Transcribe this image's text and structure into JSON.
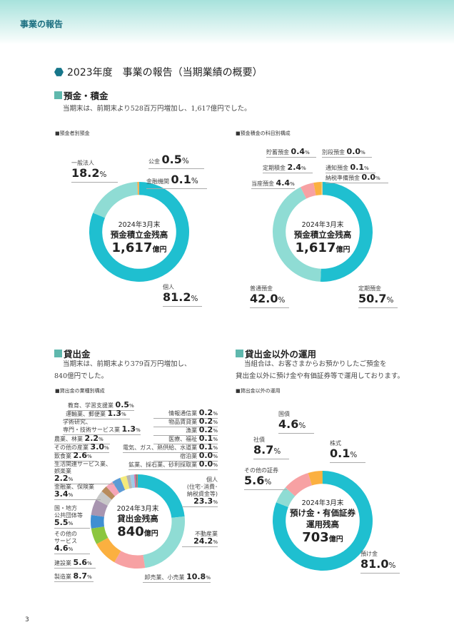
{
  "header": {
    "title": "事業の報告"
  },
  "main_title": "2023年度　事業の報告（当期業績の概要）",
  "deposits": {
    "heading": "預金・積金",
    "text": "当期末は、前期末より528百万円増加し、1,617億円でした。"
  },
  "loans": {
    "heading": "貸出金",
    "text1": "当期末は、前期末より379百万円増加し、",
    "text2": "840億円でした。"
  },
  "investments": {
    "heading": "貸出金以外の運用",
    "text1": "当組合は、お客さまからお預かりしたご預金を",
    "text2": "貸出金以外に預け金や有価証券等で運用しております。"
  },
  "page_number": "3",
  "chart_data": [
    {
      "type": "pie",
      "subtitle": "■預金者別預金",
      "center": {
        "line1": "2024年3月末",
        "line2": "預金積立金残高",
        "value": "1,617",
        "unit": "億円"
      },
      "categories": [
        "個人",
        "一般法人",
        "公金",
        "金融機関"
      ],
      "values": [
        81.2,
        18.2,
        0.5,
        0.1
      ],
      "labels": [
        "81.2",
        "18.2",
        "0.5",
        "0.1"
      ],
      "pct": "%",
      "colors": [
        "#1fbfd0",
        "#8fdcd4",
        "#fbb040",
        "#f7a1a3"
      ]
    },
    {
      "type": "pie",
      "subtitle": "■預金積金の科目別構成",
      "center": {
        "line1": "2024年3月末",
        "line2": "預金積立金残高",
        "value": "1,617",
        "unit": "億円"
      },
      "categories": [
        "定期預金",
        "普通預金",
        "当座預金",
        "定期積金",
        "貯蓄預金",
        "別段預金",
        "通知預金",
        "納税準備預金"
      ],
      "values": [
        50.7,
        42.0,
        4.4,
        2.4,
        0.4,
        0.0,
        0.1,
        0.0
      ],
      "labels": [
        "50.7",
        "42.0",
        "4.4",
        "2.4",
        "0.4",
        "0.0",
        "0.1",
        "0.0"
      ],
      "pct": "%",
      "colors": [
        "#1fbfd0",
        "#8fdcd4",
        "#f7a1a3",
        "#fbb040",
        "#e9d36a",
        "#9ac7e8",
        "#c9a6d0",
        "#cccccc"
      ]
    },
    {
      "type": "pie",
      "subtitle": "■貸出金の業種別構成",
      "center": {
        "line1": "2024年3月末",
        "line2": "貸出金残高",
        "value": "840",
        "unit": "億円"
      },
      "categories": [
        "個人\n(住宅･消費･\n納税資金等)",
        "不動産業",
        "卸売業、小売業",
        "製造業",
        "建設業",
        "その他の\nサービス",
        "国・地方\n公共団体等",
        "金融業、保険業",
        "生活関連サービス業、\n娯楽業",
        "飲食業",
        "その他の産業",
        "農業、林業",
        "学術研究、\n専門・技術サービス業",
        "運輸業、郵便業",
        "教育、学習支援業",
        "情報通信業",
        "物品賃貸業",
        "漁業",
        "医療、福祉",
        "電気、ガス、熱供給、水道業",
        "宿泊業",
        "鉱業、採石業、砂利採取業"
      ],
      "values": [
        23.3,
        24.2,
        10.8,
        8.7,
        5.6,
        4.6,
        5.5,
        3.4,
        2.2,
        2.6,
        3.0,
        2.2,
        1.3,
        1.3,
        0.5,
        0.2,
        0.2,
        0.2,
        0.1,
        0.1,
        0.0,
        0.0
      ],
      "labels": [
        "23.3",
        "24.2",
        "10.8",
        "8.7",
        "5.6",
        "4.6",
        "5.5",
        "3.4",
        "2.2",
        "2.6",
        "3.0",
        "2.2",
        "1.3",
        "1.3",
        "0.5",
        "0.2",
        "0.2",
        "0.2",
        "0.1",
        "0.1",
        "0.0",
        "0.0"
      ],
      "pct": "%",
      "colors": [
        "#1fbfd0",
        "#8fdcd4",
        "#f7a1a3",
        "#fbb040",
        "#8cc63f",
        "#3f8fd2",
        "#a895b0",
        "#c8c8c8",
        "#b88b5c",
        "#f5a5b8",
        "#5b9bd5",
        "#f4ea7a",
        "#b5b5b5",
        "#9fcbe8",
        "#d07ab0",
        "#e0483e",
        "#2f6fb5",
        "#6bbf6b",
        "#e88a3a",
        "#c1272d",
        "#999999",
        "#666666"
      ]
    },
    {
      "type": "pie",
      "subtitle": "■貸出金以外の運用",
      "center": {
        "line1": "2024年3月末",
        "line2": "預け金・有価証券",
        "line3": "運用残高",
        "value": "703",
        "unit": "億円"
      },
      "categories": [
        "預け金",
        "その他の証券",
        "社債",
        "国債",
        "株式"
      ],
      "values": [
        81.0,
        5.6,
        8.7,
        4.6,
        0.1
      ],
      "labels": [
        "81.0",
        "5.6",
        "8.7",
        "4.6",
        "0.1"
      ],
      "pct": "%",
      "colors": [
        "#1fbfd0",
        "#8fdcd4",
        "#f7a1a3",
        "#fbb040",
        "#8cc63f"
      ]
    }
  ]
}
